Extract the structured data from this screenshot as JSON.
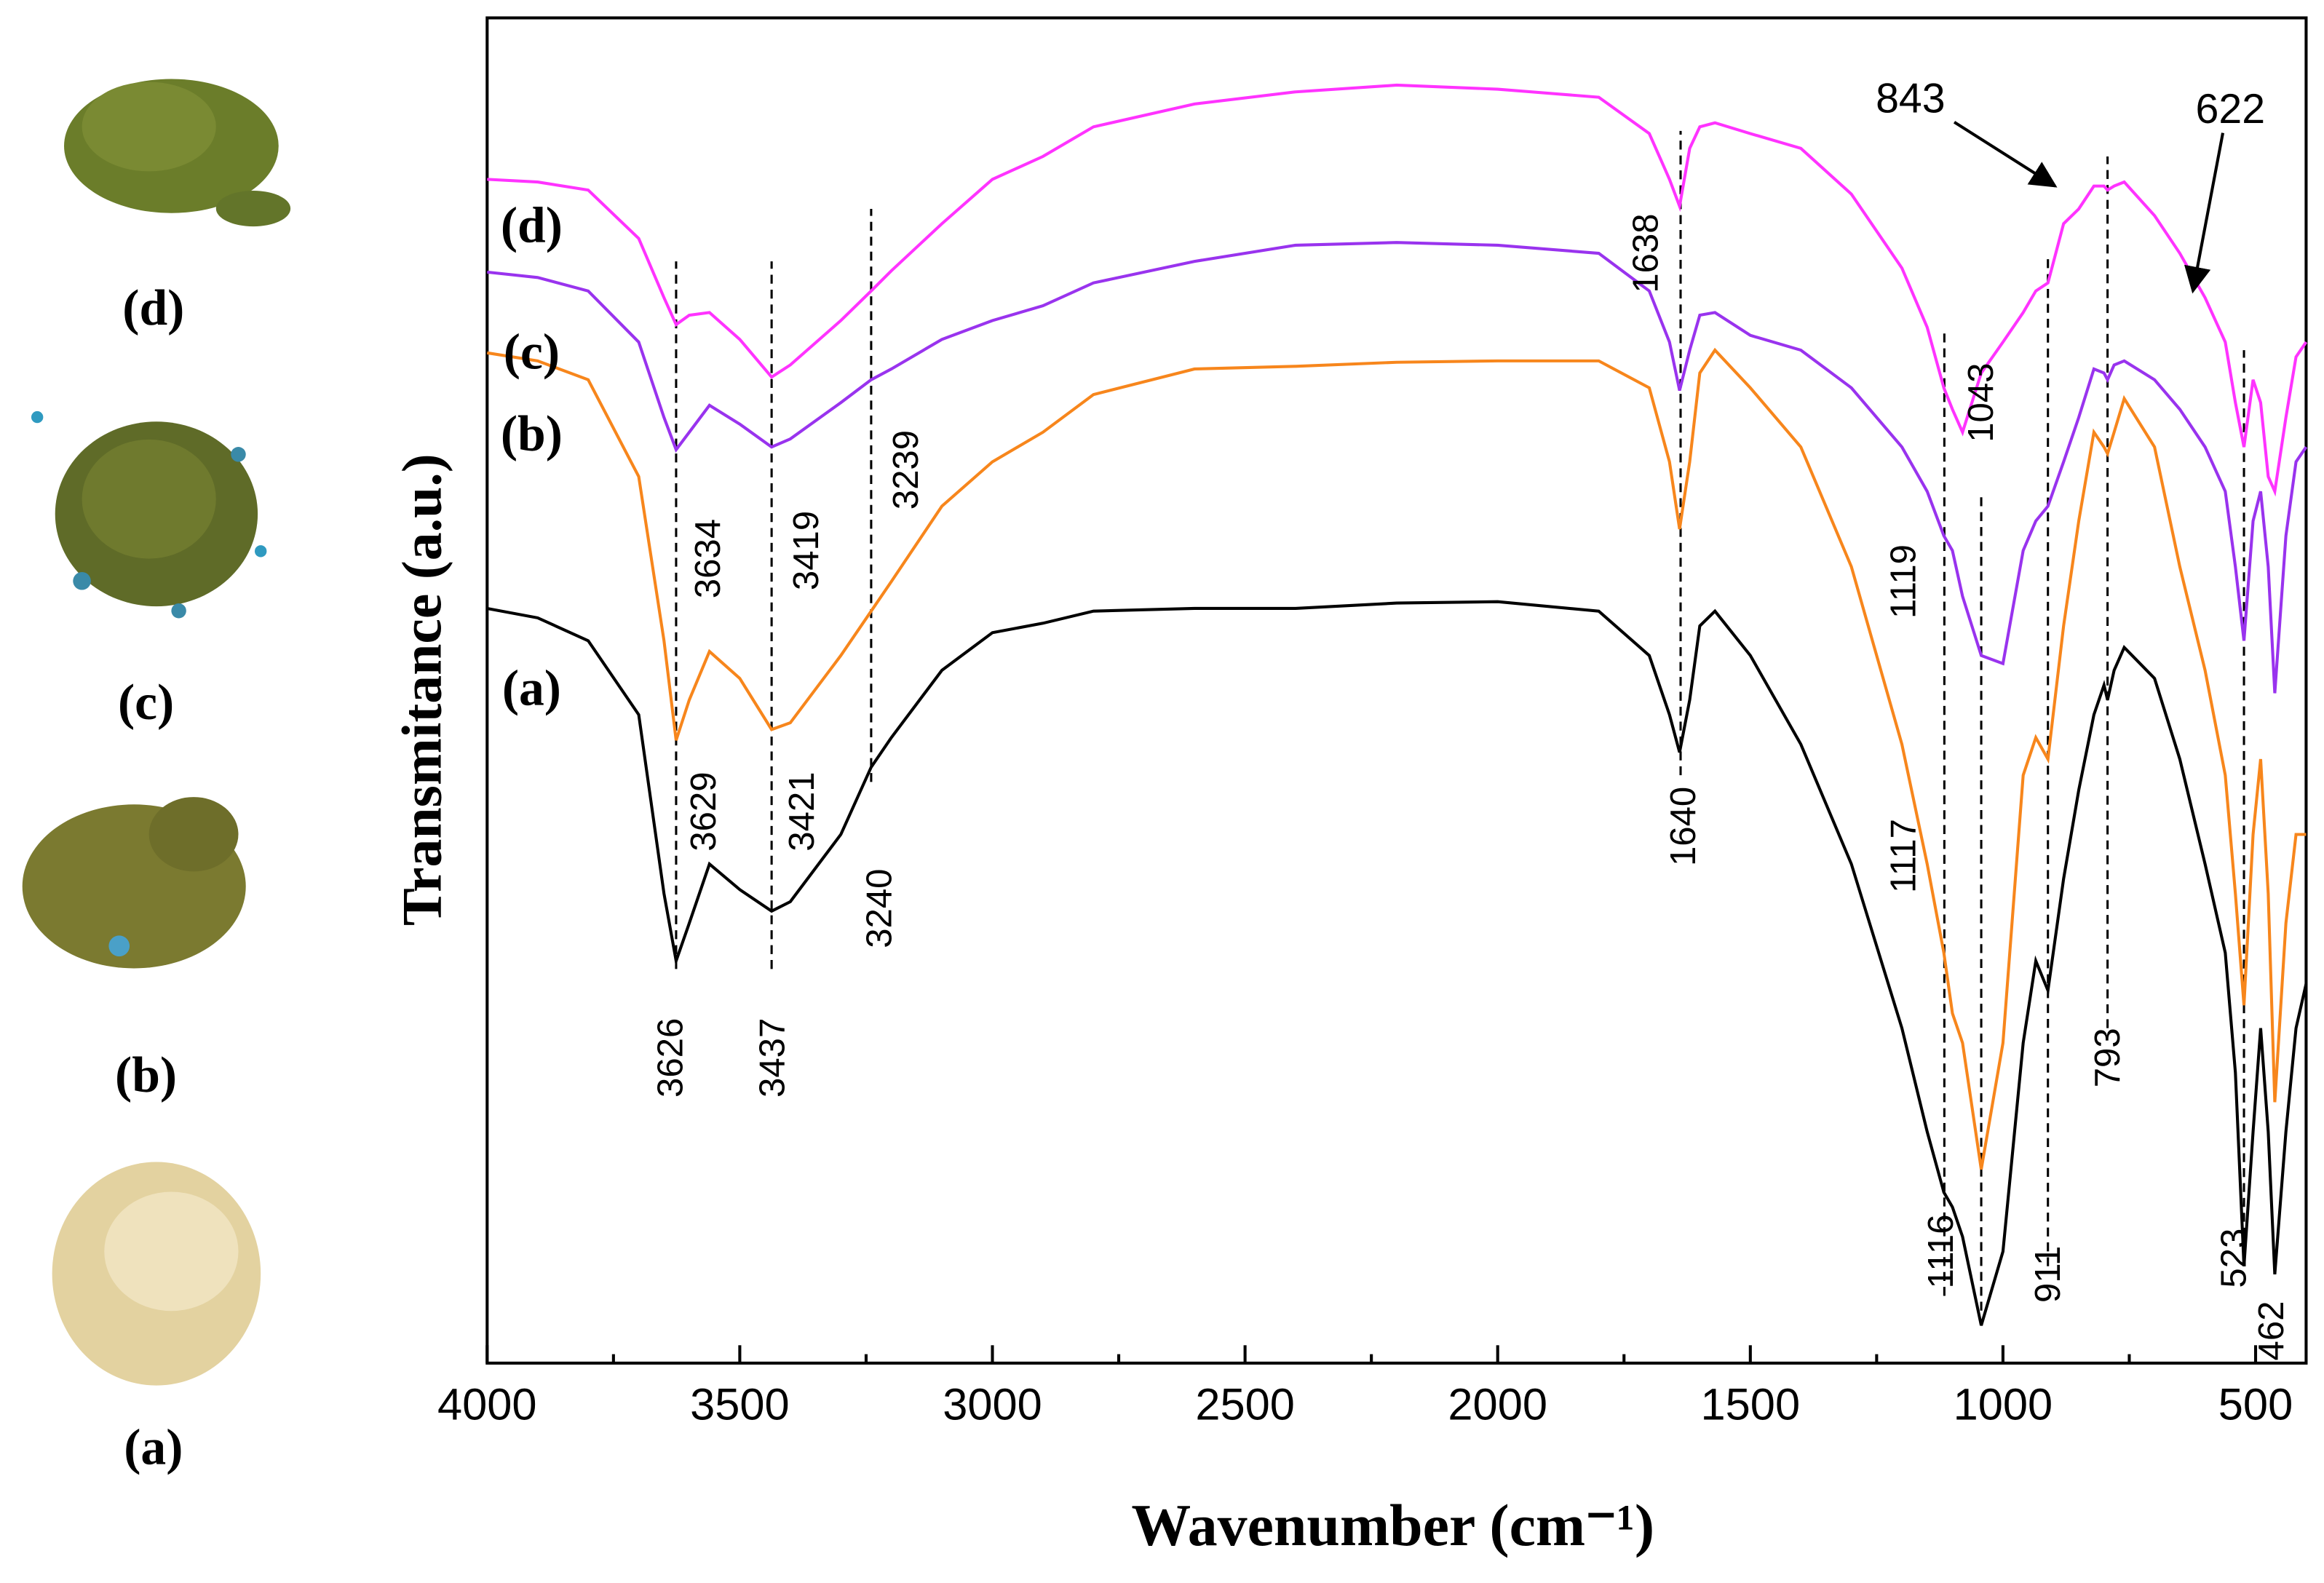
{
  "photos": {
    "labels": [
      "(d)",
      "(c)",
      "(b)",
      "(a)"
    ]
  },
  "chart_data": {
    "type": "line",
    "xlabel": "Wavenumber (cm⁻¹)",
    "ylabel": "Transmitance (a.u.)",
    "xlim": [
      4000,
      400
    ],
    "ylim": [
      0,
      100
    ],
    "xticks": [
      4000,
      3500,
      3000,
      2500,
      2000,
      1500,
      1000,
      500
    ],
    "xminor": [
      3750,
      3250,
      2750,
      2250,
      1750,
      1250,
      750
    ],
    "x": [
      4000,
      3900,
      3800,
      3700,
      3650,
      3626,
      3600,
      3560,
      3500,
      3437,
      3400,
      3300,
      3240,
      3200,
      3100,
      3000,
      2900,
      2800,
      2600,
      2400,
      2200,
      2000,
      1800,
      1700,
      1660,
      1640,
      1620,
      1600,
      1570,
      1500,
      1400,
      1300,
      1200,
      1150,
      1117,
      1100,
      1080,
      1043,
      1000,
      960,
      935,
      911,
      880,
      850,
      820,
      800,
      793,
      780,
      760,
      700,
      650,
      600,
      560,
      540,
      523,
      505,
      490,
      475,
      462,
      440,
      420,
      400
    ],
    "series": [
      {
        "name": "(a)",
        "color": "#000000",
        "label_at": [
          3912,
          49.8
        ],
        "values": [
          56.1,
          55.4,
          53.7,
          48.2,
          34.9,
          29.9,
          32.7,
          37.1,
          35.2,
          33.6,
          34.3,
          39.3,
          44.3,
          46.5,
          51.5,
          54.3,
          55.0,
          55.9,
          56.1,
          56.1,
          56.5,
          56.6,
          55.9,
          52.6,
          48.2,
          45.4,
          49.3,
          54.8,
          55.9,
          52.6,
          46.0,
          37.1,
          24.9,
          17.2,
          12.7,
          11.6,
          9.4,
          2.8,
          8.3,
          23.8,
          29.9,
          27.7,
          36.0,
          42.6,
          48.2,
          50.4,
          49.3,
          51.5,
          53.2,
          50.9,
          44.9,
          37.1,
          30.5,
          21.6,
          7.2,
          17.2,
          24.9,
          17.2,
          6.6,
          17.2,
          24.9,
          28.2
        ]
      },
      {
        "name": "(b)",
        "color": "#f7861c",
        "label_at": [
          3912,
          68.7
        ],
        "values": [
          75.1,
          74.5,
          73.1,
          65.9,
          53.7,
          46.3,
          49.3,
          52.9,
          50.9,
          47.1,
          47.6,
          52.6,
          55.9,
          58.1,
          63.7,
          67.0,
          69.2,
          72.0,
          73.9,
          74.1,
          74.4,
          74.5,
          74.5,
          72.5,
          67.0,
          62.0,
          67.0,
          73.6,
          75.3,
          72.5,
          68.1,
          59.2,
          46.0,
          37.1,
          30.5,
          26.0,
          23.8,
          14.4,
          23.8,
          43.7,
          46.5,
          44.9,
          54.8,
          62.6,
          69.2,
          68.1,
          67.6,
          69.2,
          71.7,
          68.1,
          59.2,
          51.5,
          43.7,
          34.9,
          26.6,
          39.3,
          44.9,
          34.9,
          19.4,
          32.7,
          39.3,
          39.3
        ]
      },
      {
        "name": "(c)",
        "color": "#9933ee",
        "label_at": [
          3912,
          74.8
        ],
        "values": [
          81.1,
          80.7,
          79.7,
          75.9,
          70.3,
          67.9,
          69.2,
          71.2,
          69.8,
          68.1,
          68.7,
          71.4,
          73.1,
          73.9,
          76.1,
          77.5,
          78.6,
          80.3,
          81.9,
          83.1,
          83.3,
          83.1,
          82.5,
          79.7,
          75.9,
          72.3,
          75.3,
          77.9,
          78.1,
          76.4,
          75.3,
          72.5,
          68.1,
          64.8,
          61.5,
          60.4,
          57.0,
          52.6,
          52.0,
          60.4,
          62.6,
          63.7,
          67.0,
          70.3,
          73.9,
          73.6,
          73.1,
          74.2,
          74.5,
          73.1,
          70.9,
          68.1,
          64.8,
          59.2,
          53.7,
          62.6,
          64.8,
          59.2,
          49.8,
          61.5,
          67.0,
          68.1
        ]
      },
      {
        "name": "(d)",
        "color": "#ff33ff",
        "label_at": [
          3912,
          84.2
        ],
        "values": [
          88.0,
          87.8,
          87.2,
          83.6,
          79.2,
          77.2,
          77.9,
          78.1,
          76.1,
          73.3,
          74.2,
          77.5,
          79.7,
          81.2,
          84.7,
          88.0,
          89.7,
          91.9,
          93.6,
          94.5,
          95.0,
          94.7,
          94.1,
          91.4,
          88.0,
          86.0,
          90.3,
          91.9,
          92.2,
          91.4,
          90.3,
          86.9,
          81.4,
          77.0,
          72.5,
          70.9,
          69.2,
          73.6,
          75.9,
          78.1,
          79.7,
          80.3,
          84.7,
          85.8,
          87.5,
          87.5,
          87.2,
          87.5,
          87.8,
          85.3,
          82.5,
          79.2,
          75.9,
          71.4,
          68.1,
          73.1,
          71.4,
          65.9,
          64.8,
          70.3,
          74.8,
          75.9
        ]
      }
    ],
    "markers": [
      {
        "x": 3626,
        "y": [
          29.3,
          81.9
        ]
      },
      {
        "x": 3437,
        "y": [
          29.3,
          81.9
        ]
      },
      {
        "x": 3240,
        "y": [
          43.2,
          85.8
        ]
      },
      {
        "x": 1638,
        "y": [
          43.7,
          91.6
        ]
      },
      {
        "x": 1116,
        "y": [
          5.0,
          76.7
        ]
      },
      {
        "x": 1043,
        "y": [
          3.9,
          64.8
        ]
      },
      {
        "x": 911,
        "y": [
          7.2,
          82.5
        ]
      },
      {
        "x": 793,
        "y": [
          24.9,
          89.7
        ]
      },
      {
        "x": 523,
        "y": [
          9.4,
          75.3
        ]
      }
    ],
    "annotations": [
      {
        "text": "3626",
        "x": 3632,
        "y": 22.7
      },
      {
        "text": "3437",
        "x": 3431,
        "y": 22.7
      },
      {
        "text": "3240",
        "x": 3219,
        "y": 33.8
      },
      {
        "text": "3634",
        "x": 3558,
        "y": 59.8
      },
      {
        "text": "3419",
        "x": 3364,
        "y": 60.4
      },
      {
        "text": "3239",
        "x": 3166,
        "y": 66.4
      },
      {
        "text": "3629",
        "x": 3567,
        "y": 41.0
      },
      {
        "text": "3421",
        "x": 3372,
        "y": 41.0
      },
      {
        "text": "1638",
        "x": 1702,
        "y": 82.5
      },
      {
        "text": "1640",
        "x": 1628,
        "y": 39.9
      },
      {
        "text": "1119",
        "x": 1192,
        "y": 58.1
      },
      {
        "text": "1117",
        "x": 1192,
        "y": 37.7
      },
      {
        "text": "1116",
        "x": 1118,
        "y": 8.3
      },
      {
        "text": "1043",
        "x": 1039,
        "y": 71.4
      },
      {
        "text": "911",
        "x": 906,
        "y": 6.6
      },
      {
        "text": "793",
        "x": 788,
        "y": 22.7
      },
      {
        "text": "523",
        "x": 538,
        "y": 7.8
      },
      {
        "text": "462",
        "x": 464,
        "y": 2.4
      }
    ],
    "arrow_labels": [
      {
        "text": "843",
        "x": 1183,
        "y": 93.8,
        "to": [
          897,
          87.5
        ]
      },
      {
        "text": "622",
        "x": 550,
        "y": 93.0,
        "to": [
          624,
          79.7
        ]
      }
    ]
  }
}
